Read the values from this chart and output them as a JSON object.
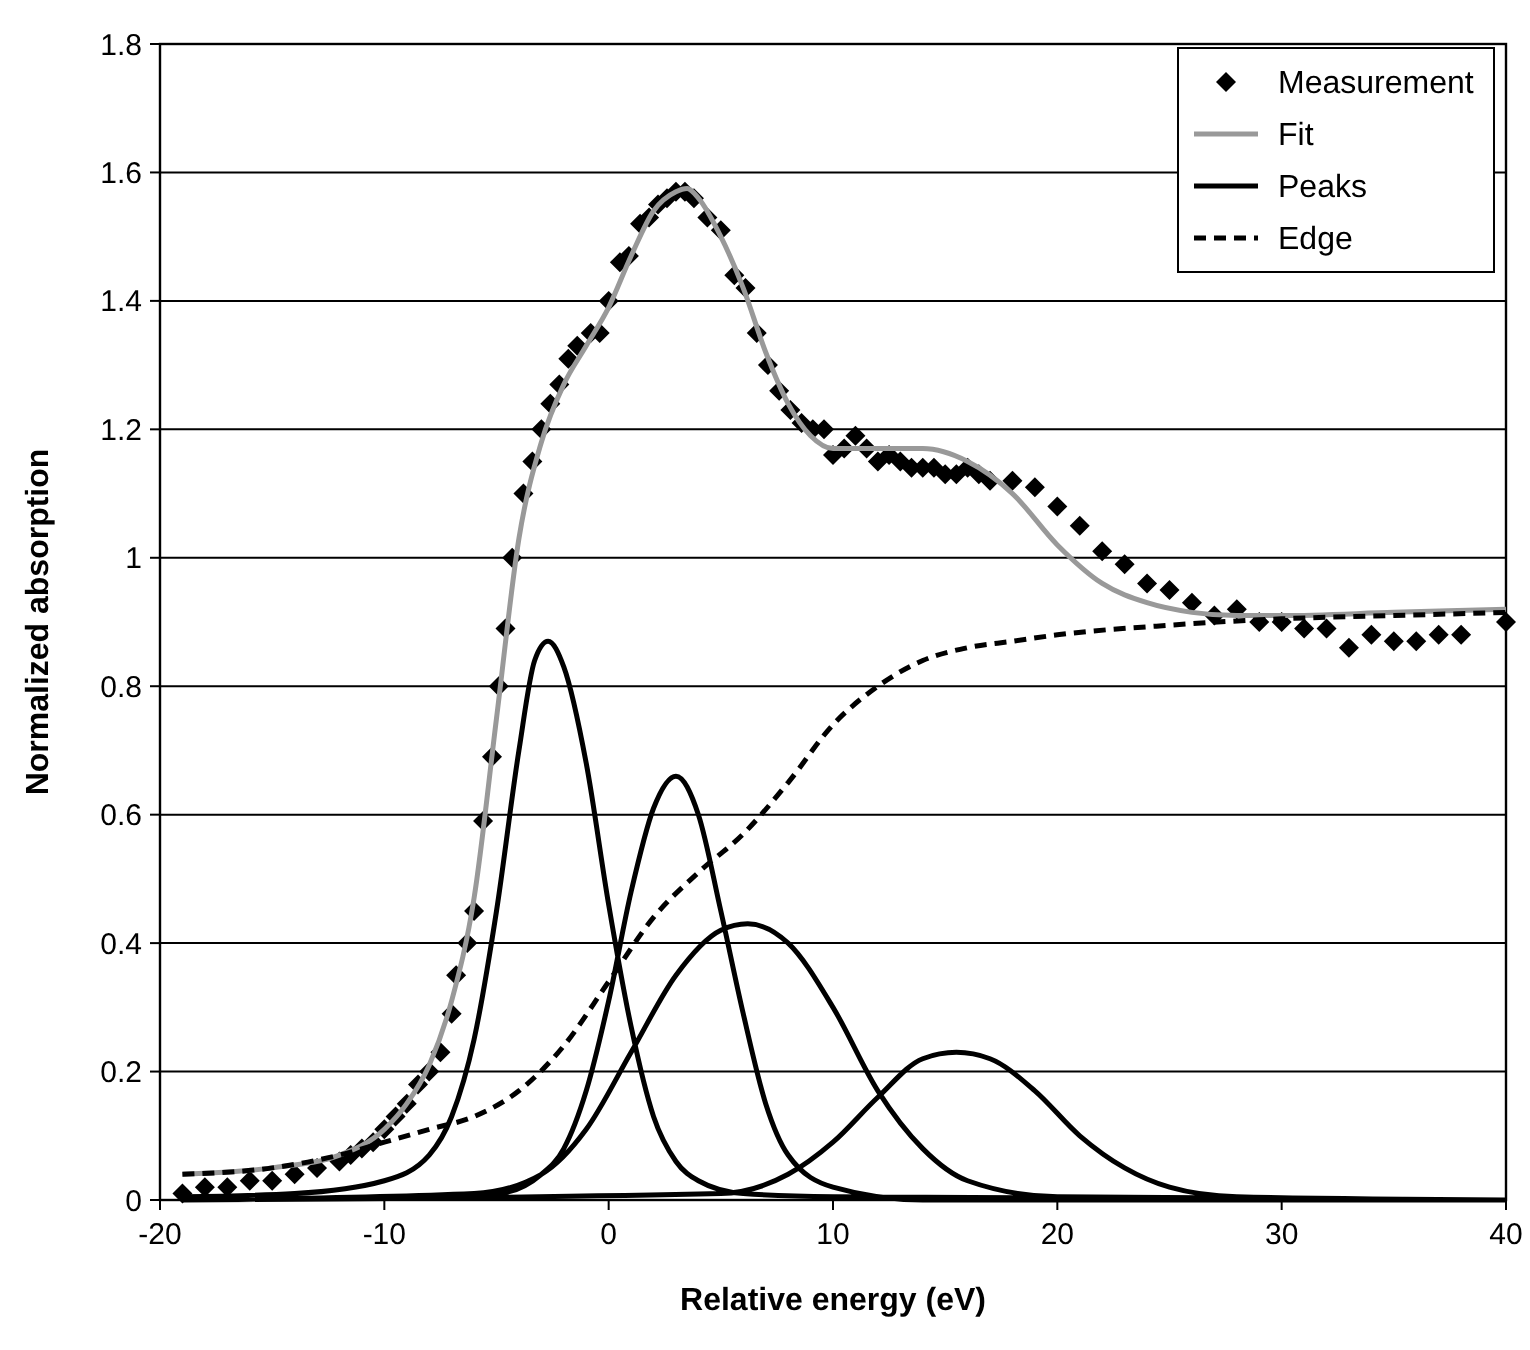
{
  "chart_data": {
    "type": "line",
    "xlabel": "Relative energy (eV)",
    "ylabel": "Normalized absorption",
    "xlim": [
      -20,
      40
    ],
    "ylim": [
      0,
      1.8
    ],
    "xticks": [
      -20,
      -10,
      0,
      10,
      20,
      30,
      40
    ],
    "yticks": [
      0,
      0.2,
      0.4,
      0.6,
      0.8,
      1,
      1.2,
      1.4,
      1.6,
      1.8
    ],
    "grid": "y",
    "legend": "top right",
    "series": [
      {
        "name": "Measurement",
        "type": "scatter",
        "marker": "diamond",
        "color": "#000000",
        "x": [
          -19,
          -18,
          -17,
          -16,
          -15,
          -14,
          -13,
          -12,
          -11.5,
          -11,
          -10.5,
          -10,
          -9.5,
          -9,
          -8.5,
          -8,
          -7.5,
          -7,
          -6.8,
          -6.3,
          -6,
          -5.6,
          -5.2,
          -4.9,
          -4.6,
          -4.3,
          -3.8,
          -3.4,
          -3,
          -2.6,
          -2.2,
          -1.8,
          -1.4,
          -0.8,
          -0.4,
          0,
          0.5,
          0.9,
          1.4,
          1.8,
          2.2,
          2.6,
          3,
          3.4,
          3.8,
          4.4,
          5,
          5.6,
          6.1,
          6.6,
          7.1,
          7.6,
          8.1,
          8.6,
          9.1,
          9.6,
          10,
          10.5,
          11,
          11.5,
          12,
          12.5,
          13,
          13.5,
          14,
          14.5,
          15,
          15.5,
          16,
          16.5,
          17,
          18,
          19,
          20,
          21,
          22,
          23,
          24,
          25,
          26,
          27,
          28,
          29,
          30,
          31,
          32,
          33,
          34,
          35,
          36,
          37,
          38,
          40
        ],
        "values": [
          0.01,
          0.02,
          0.02,
          0.03,
          0.03,
          0.04,
          0.05,
          0.06,
          0.07,
          0.08,
          0.09,
          0.11,
          0.13,
          0.15,
          0.18,
          0.2,
          0.23,
          0.29,
          0.35,
          0.4,
          0.45,
          0.59,
          0.69,
          0.8,
          0.89,
          1,
          1.1,
          1.15,
          1.2,
          1.24,
          1.27,
          1.31,
          1.33,
          1.35,
          1.35,
          1.4,
          1.46,
          1.47,
          1.52,
          1.53,
          1.55,
          1.56,
          1.57,
          1.57,
          1.56,
          1.53,
          1.51,
          1.44,
          1.42,
          1.35,
          1.3,
          1.26,
          1.23,
          1.21,
          1.2,
          1.2,
          1.16,
          1.17,
          1.19,
          1.17,
          1.15,
          1.16,
          1.15,
          1.14,
          1.14,
          1.14,
          1.13,
          1.13,
          1.14,
          1.13,
          1.12,
          1.12,
          1.11,
          1.08,
          1.05,
          1.01,
          0.99,
          0.96,
          0.95,
          0.93,
          0.91,
          0.92,
          0.9,
          0.9,
          0.89,
          0.89,
          0.86,
          0.88,
          0.87,
          0.87,
          0.88,
          0.88,
          0.9
        ]
      },
      {
        "name": "Fit",
        "color": "#999999",
        "line_style": "solid",
        "x": [
          -19,
          -15,
          -12,
          -10,
          -9,
          -8,
          -7,
          -6,
          -5,
          -4,
          -3,
          -2,
          -1,
          0,
          1,
          2,
          3,
          3.5,
          4,
          5,
          6,
          7,
          8,
          9,
          10,
          12,
          14,
          16,
          18,
          20,
          22,
          24,
          26,
          28,
          30,
          35,
          40
        ],
        "values": [
          0.04,
          0.05,
          0.07,
          0.11,
          0.15,
          0.21,
          0.31,
          0.47,
          0.75,
          1.03,
          1.18,
          1.27,
          1.33,
          1.39,
          1.47,
          1.54,
          1.57,
          1.575,
          1.56,
          1.5,
          1.42,
          1.32,
          1.24,
          1.19,
          1.17,
          1.17,
          1.17,
          1.15,
          1.1,
          1.02,
          0.96,
          0.93,
          0.915,
          0.91,
          0.91,
          0.915,
          0.92
        ]
      },
      {
        "name": "Peaks",
        "color": "#000000",
        "line_style": "solid",
        "x": [
          -19,
          -14,
          -10,
          -8,
          -7,
          -6,
          -5,
          -4,
          -3.3,
          -2.7,
          -2,
          -1,
          0,
          1,
          2,
          3,
          4,
          6,
          10,
          40,
          null,
          -19,
          -5,
          -3,
          -2,
          -1,
          0,
          1,
          2,
          3,
          4,
          5,
          6,
          7,
          8,
          10,
          14,
          40,
          null,
          -19,
          -6,
          -3,
          -1,
          1,
          3,
          5,
          6.2,
          8,
          10,
          12,
          14,
          16,
          20,
          40,
          null,
          -19,
          5,
          8,
          10,
          12,
          14,
          15.5,
          17,
          19,
          21,
          23,
          25,
          28,
          40
        ],
        "values": [
          0.005,
          0.01,
          0.03,
          0.07,
          0.13,
          0.25,
          0.45,
          0.7,
          0.84,
          0.87,
          0.83,
          0.68,
          0.46,
          0.27,
          0.13,
          0.06,
          0.03,
          0.01,
          0.005,
          0,
          null,
          0,
          0.01,
          0.04,
          0.08,
          0.17,
          0.31,
          0.48,
          0.61,
          0.66,
          0.6,
          0.45,
          0.29,
          0.15,
          0.07,
          0.02,
          0,
          0,
          null,
          0,
          0.01,
          0.04,
          0.11,
          0.23,
          0.35,
          0.42,
          0.43,
          0.4,
          0.3,
          0.17,
          0.08,
          0.03,
          0.005,
          0,
          null,
          0,
          0.01,
          0.04,
          0.09,
          0.16,
          0.22,
          0.23,
          0.22,
          0.17,
          0.1,
          0.05,
          0.02,
          0.005,
          0
        ]
      },
      {
        "name": "Edge",
        "color": "#000000",
        "line_style": "dashed",
        "x": [
          -19,
          -15,
          -12,
          -10,
          -8,
          -6,
          -4,
          -2,
          0,
          2,
          4,
          6,
          8,
          10,
          12,
          14,
          16,
          18,
          20,
          25,
          30,
          35,
          40
        ],
        "values": [
          0.04,
          0.05,
          0.07,
          0.09,
          0.11,
          0.13,
          0.17,
          0.24,
          0.34,
          0.44,
          0.51,
          0.57,
          0.65,
          0.74,
          0.8,
          0.84,
          0.86,
          0.87,
          0.88,
          0.895,
          0.905,
          0.91,
          0.915
        ]
      }
    ]
  }
}
